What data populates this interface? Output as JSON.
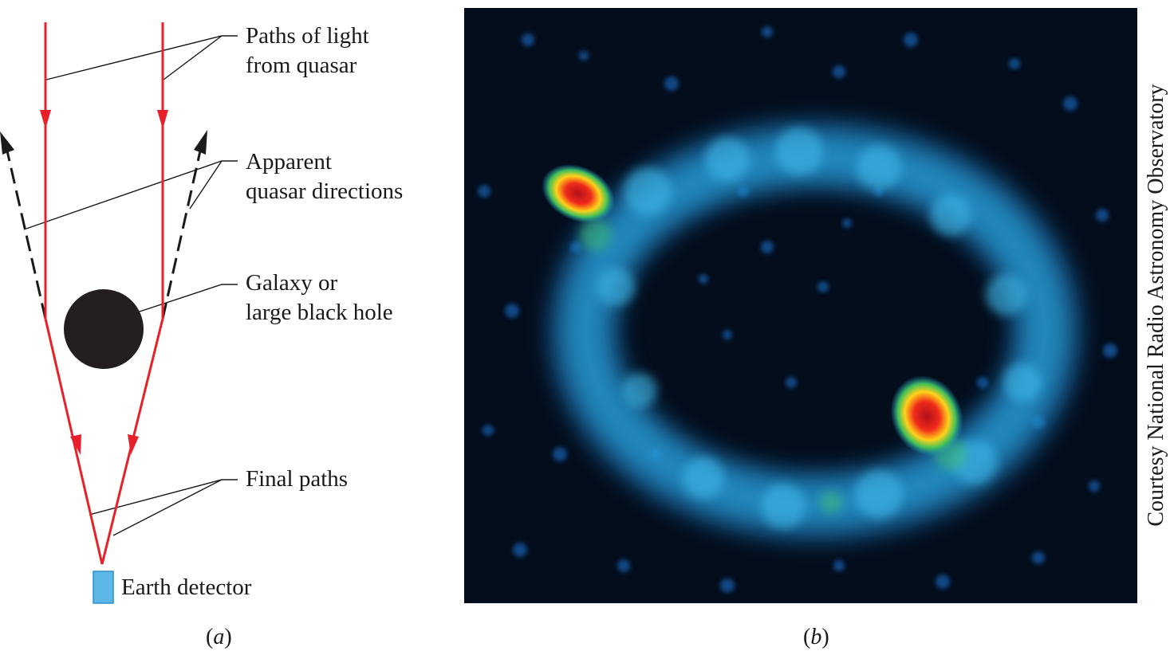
{
  "panel_a": {
    "labels": {
      "paths_of_light_1": "Paths of light",
      "paths_of_light_2": "from quasar",
      "apparent_1": "Apparent",
      "apparent_2": "quasar directions",
      "galaxy_1": "Galaxy or",
      "galaxy_2": "large black hole",
      "final_paths": "Final paths",
      "detector": "Earth detector"
    },
    "caption_open": "(",
    "caption_letter": "a",
    "caption_close": ")",
    "colors": {
      "light_path": "#e8202a",
      "apparent_path": "#1a1a1a",
      "black_hole": "#231f20",
      "detector": "#5cb6e6"
    }
  },
  "panel_b": {
    "caption_open": "(",
    "caption_letter": "b",
    "caption_close": ")",
    "credit": "Courtesy National Radio Astronomy Observatory",
    "colors": {
      "background": "#040d1c",
      "ring": "#1e9ad6",
      "hotspot": "#e8202a"
    }
  }
}
